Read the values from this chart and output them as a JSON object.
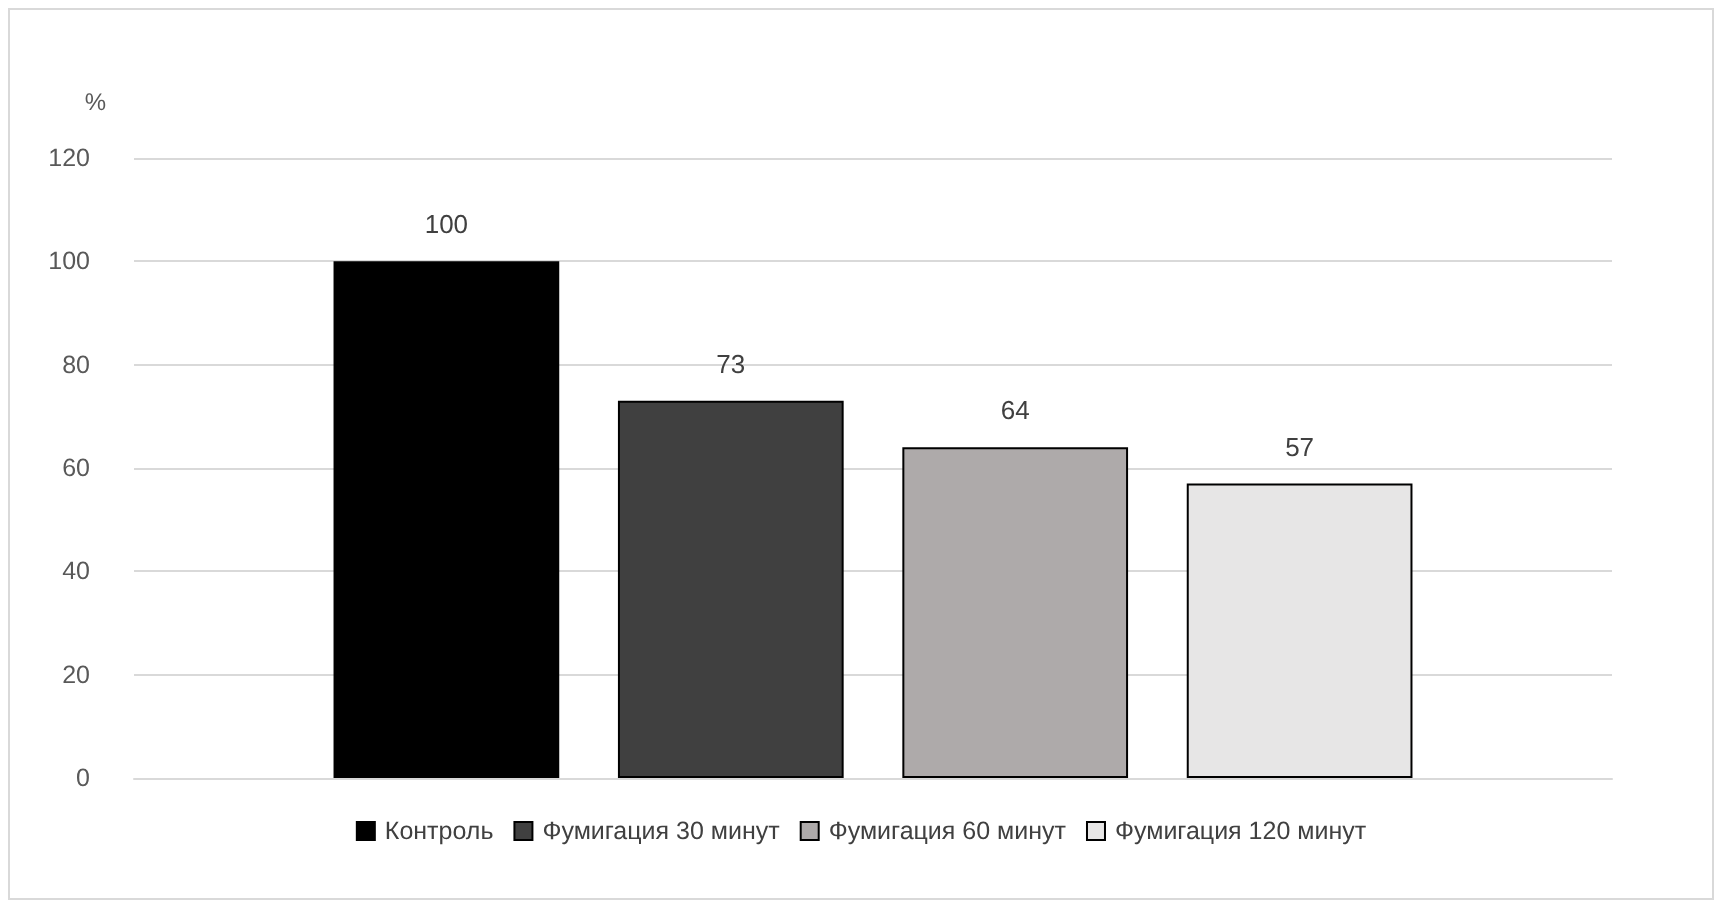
{
  "chart_data": {
    "type": "bar",
    "ylabel": "%",
    "categories": [
      null
    ],
    "series": [
      {
        "name": "Контроль",
        "color": "#000000",
        "values": [
          100
        ]
      },
      {
        "name": "Фумигация 30 минут",
        "color": "#404040",
        "values": [
          73
        ]
      },
      {
        "name": "Фумигация 60 минут",
        "color": "#aeaaaa",
        "values": [
          64
        ]
      },
      {
        "name": "Фумигация 120 минут",
        "color": "#e7e6e6",
        "values": [
          57
        ]
      }
    ],
    "ylim": [
      0,
      120
    ],
    "yticks": [
      0,
      20,
      40,
      60,
      80,
      100,
      120
    ],
    "grid": "y",
    "legend": "bottom",
    "data_labels": true
  }
}
